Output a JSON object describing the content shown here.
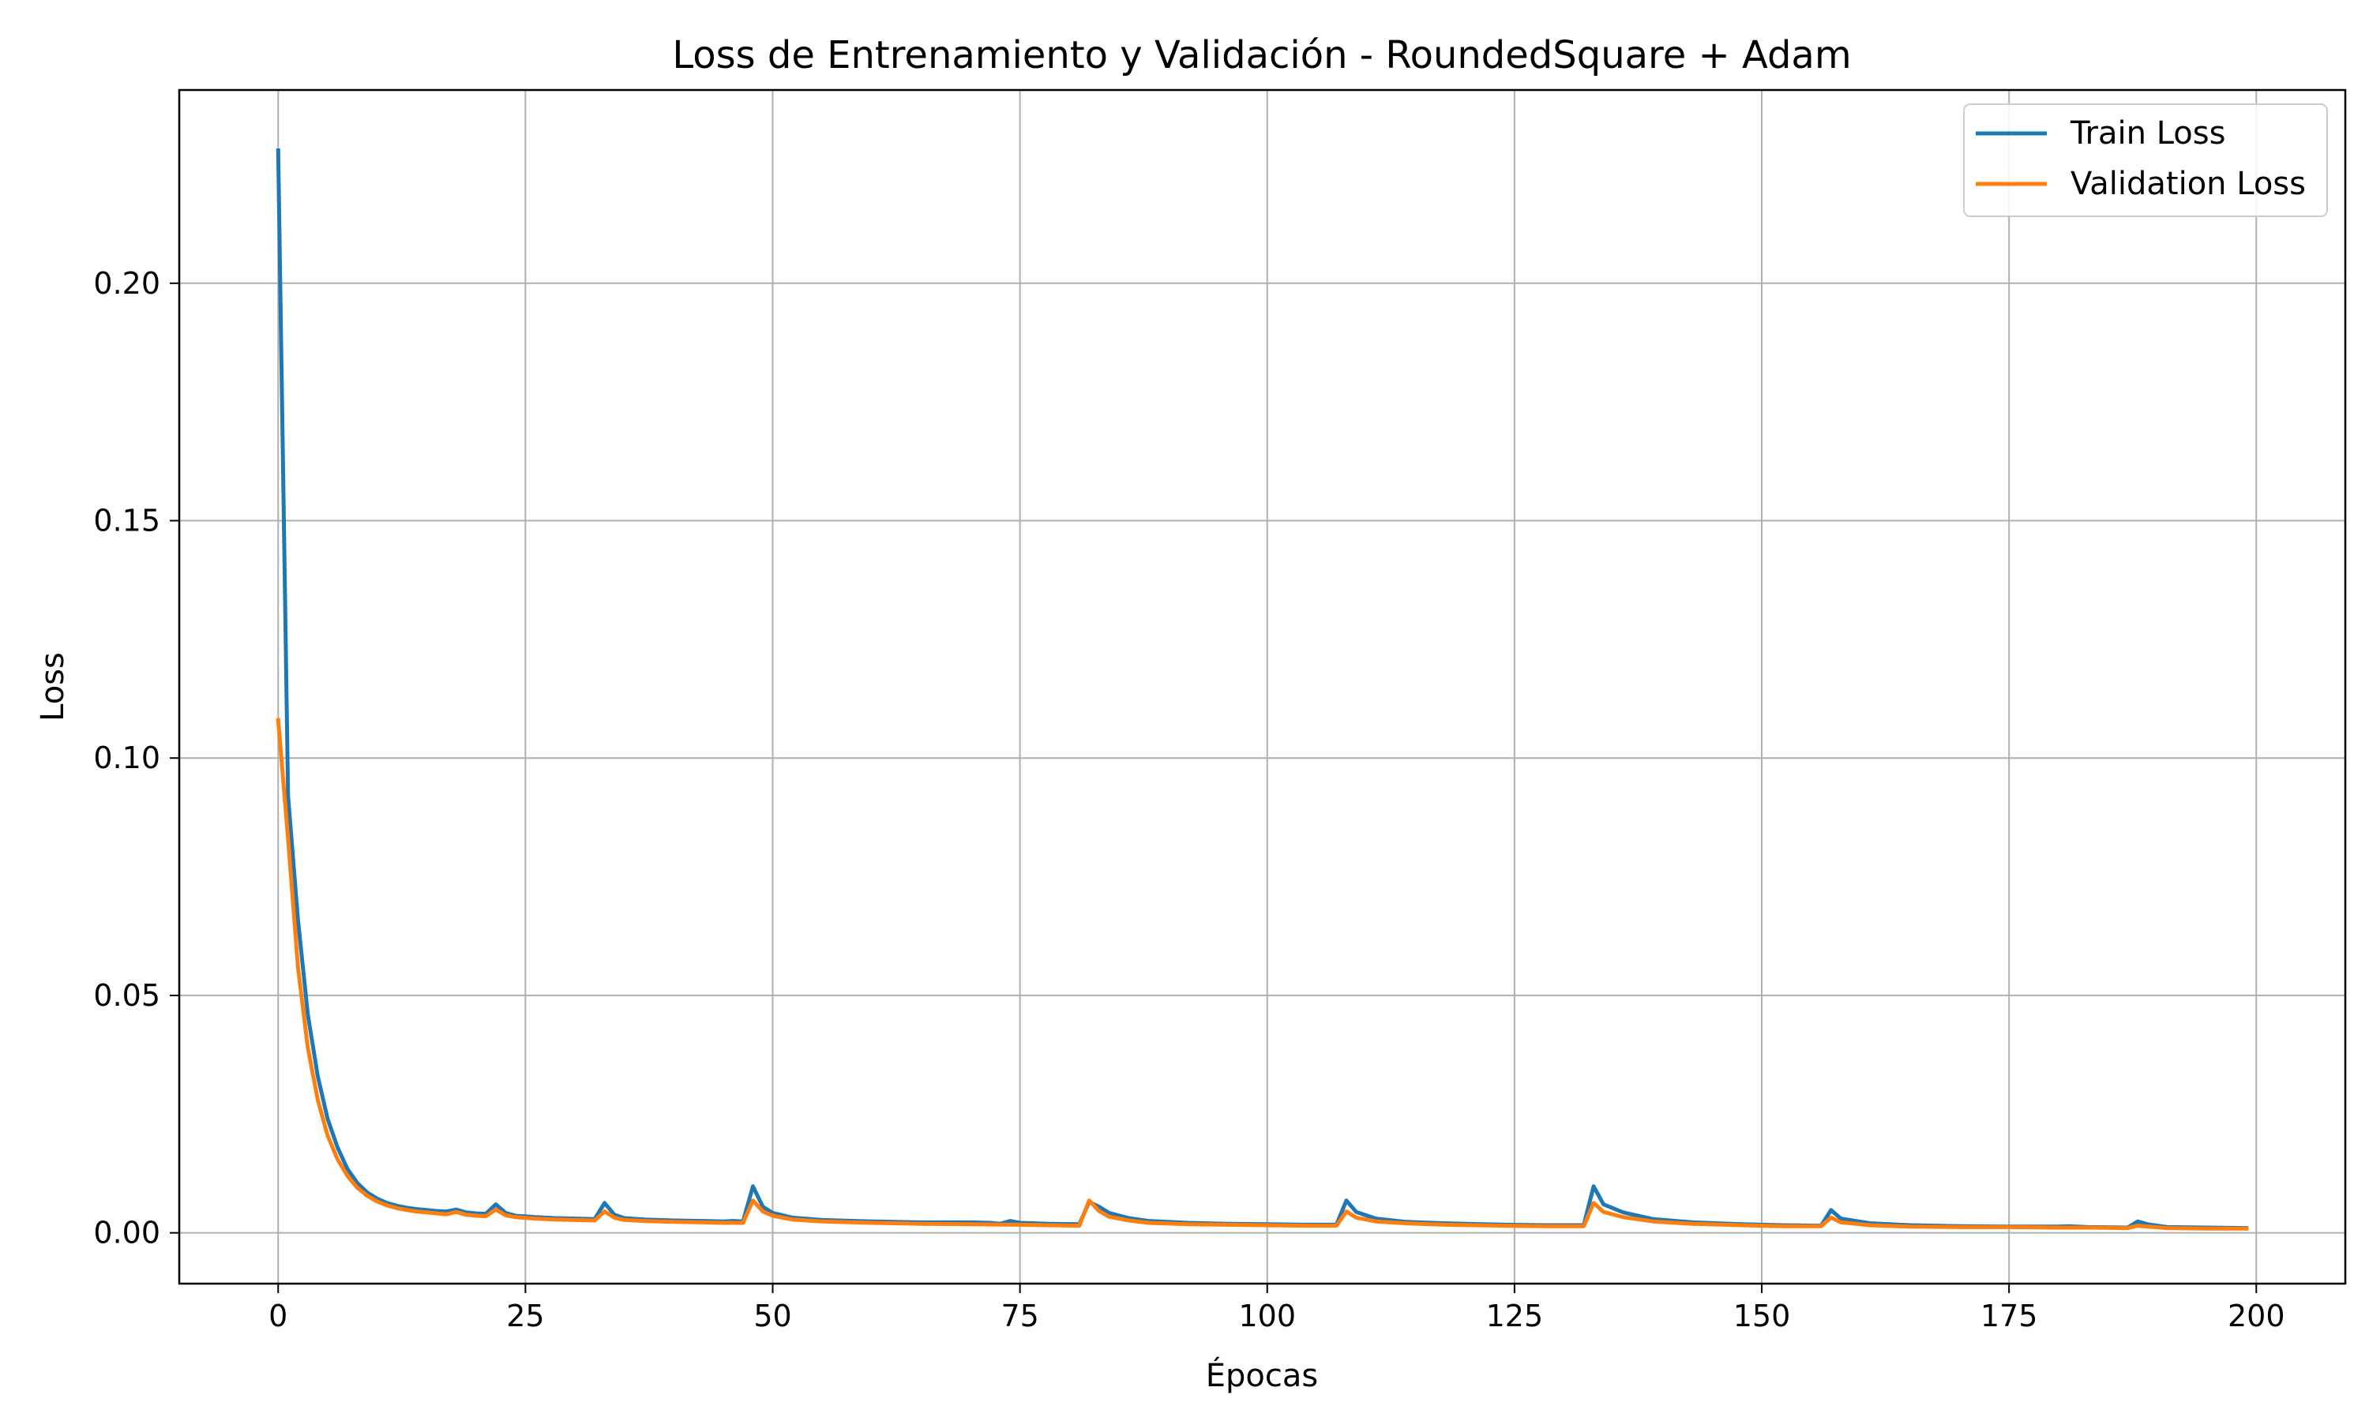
{
  "chart_data": {
    "type": "line",
    "title": "Loss de Entrenamiento y Validación - RoundedSquare + Adam",
    "xlabel": "Épocas",
    "ylabel": "Loss",
    "xlim": [
      -10,
      209
    ],
    "ylim": [
      -0.0107,
      0.2407
    ],
    "grid": true,
    "legend_position": "top-right",
    "x_ticks": [
      0,
      25,
      50,
      75,
      100,
      125,
      150,
      175,
      200
    ],
    "x_tick_labels": [
      "0",
      "25",
      "50",
      "75",
      "100",
      "125",
      "150",
      "175",
      "200"
    ],
    "y_ticks": [
      0.0,
      0.05,
      0.1,
      0.15,
      0.2
    ],
    "y_tick_labels": [
      "0.00",
      "0.05",
      "0.10",
      "0.15",
      "0.20"
    ],
    "series": [
      {
        "name": "Train Loss",
        "color": "#1f77b4",
        "points": [
          [
            0,
            0.228
          ],
          [
            1,
            0.092
          ],
          [
            2,
            0.066
          ],
          [
            3,
            0.046
          ],
          [
            4,
            0.033
          ],
          [
            5,
            0.024
          ],
          [
            6,
            0.018
          ],
          [
            7,
            0.0135
          ],
          [
            8,
            0.0105
          ],
          [
            9,
            0.0085
          ],
          [
            10,
            0.0072
          ],
          [
            11,
            0.0063
          ],
          [
            12,
            0.0057
          ],
          [
            13,
            0.0053
          ],
          [
            14,
            0.005
          ],
          [
            15,
            0.0048
          ],
          [
            16,
            0.0046
          ],
          [
            17,
            0.0045
          ],
          [
            18,
            0.0049
          ],
          [
            19,
            0.0043
          ],
          [
            20,
            0.0041
          ],
          [
            21,
            0.004
          ],
          [
            22,
            0.006
          ],
          [
            23,
            0.0042
          ],
          [
            24,
            0.0036
          ],
          [
            26,
            0.0033
          ],
          [
            28,
            0.0031
          ],
          [
            30,
            0.003
          ],
          [
            32,
            0.0029
          ],
          [
            33,
            0.0063
          ],
          [
            34,
            0.0038
          ],
          [
            35,
            0.0031
          ],
          [
            37,
            0.0028
          ],
          [
            40,
            0.0026
          ],
          [
            43,
            0.0025
          ],
          [
            45,
            0.0024
          ],
          [
            46,
            0.0025
          ],
          [
            47,
            0.0024
          ],
          [
            48,
            0.0098
          ],
          [
            49,
            0.0055
          ],
          [
            50,
            0.0042
          ],
          [
            52,
            0.0032
          ],
          [
            55,
            0.0027
          ],
          [
            60,
            0.0024
          ],
          [
            65,
            0.0022
          ],
          [
            70,
            0.0022
          ],
          [
            72,
            0.0021
          ],
          [
            73,
            0.0019
          ],
          [
            74,
            0.0025
          ],
          [
            75,
            0.0021
          ],
          [
            78,
            0.0019
          ],
          [
            81,
            0.0018
          ],
          [
            82,
            0.0065
          ],
          [
            83,
            0.0055
          ],
          [
            84,
            0.0042
          ],
          [
            86,
            0.0031
          ],
          [
            88,
            0.0025
          ],
          [
            92,
            0.0021
          ],
          [
            96,
            0.0019
          ],
          [
            100,
            0.0018
          ],
          [
            104,
            0.0017
          ],
          [
            107,
            0.0017
          ],
          [
            108,
            0.0068
          ],
          [
            109,
            0.0044
          ],
          [
            111,
            0.003
          ],
          [
            114,
            0.0023
          ],
          [
            118,
            0.002
          ],
          [
            124,
            0.0017
          ],
          [
            128,
            0.0016
          ],
          [
            132,
            0.0016
          ],
          [
            133,
            0.0098
          ],
          [
            134,
            0.006
          ],
          [
            136,
            0.0043
          ],
          [
            139,
            0.0029
          ],
          [
            143,
            0.0022
          ],
          [
            148,
            0.0018
          ],
          [
            152,
            0.0016
          ],
          [
            156,
            0.0015
          ],
          [
            157,
            0.0048
          ],
          [
            158,
            0.003
          ],
          [
            161,
            0.002
          ],
          [
            165,
            0.0016
          ],
          [
            170,
            0.0014
          ],
          [
            175,
            0.0013
          ],
          [
            180,
            0.0013
          ],
          [
            181,
            0.0014
          ],
          [
            183,
            0.0012
          ],
          [
            187,
            0.0011
          ],
          [
            188,
            0.0024
          ],
          [
            189,
            0.0018
          ],
          [
            191,
            0.0012
          ],
          [
            195,
            0.0011
          ],
          [
            199,
            0.001
          ]
        ]
      },
      {
        "name": "Validation Loss",
        "color": "#ff7f0e",
        "points": [
          [
            0,
            0.108
          ],
          [
            1,
            0.083
          ],
          [
            2,
            0.056
          ],
          [
            3,
            0.039
          ],
          [
            4,
            0.028
          ],
          [
            5,
            0.0205
          ],
          [
            6,
            0.0155
          ],
          [
            7,
            0.012
          ],
          [
            8,
            0.0095
          ],
          [
            9,
            0.0078
          ],
          [
            10,
            0.0066
          ],
          [
            11,
            0.0058
          ],
          [
            12,
            0.0052
          ],
          [
            13,
            0.0048
          ],
          [
            14,
            0.0045
          ],
          [
            15,
            0.0043
          ],
          [
            16,
            0.0041
          ],
          [
            17,
            0.0039
          ],
          [
            18,
            0.0044
          ],
          [
            19,
            0.0038
          ],
          [
            20,
            0.0036
          ],
          [
            21,
            0.0035
          ],
          [
            22,
            0.0049
          ],
          [
            23,
            0.0037
          ],
          [
            24,
            0.0033
          ],
          [
            26,
            0.003
          ],
          [
            28,
            0.0028
          ],
          [
            30,
            0.0027
          ],
          [
            32,
            0.0026
          ],
          [
            33,
            0.0045
          ],
          [
            34,
            0.0032
          ],
          [
            35,
            0.0027
          ],
          [
            37,
            0.0025
          ],
          [
            40,
            0.0023
          ],
          [
            43,
            0.0022
          ],
          [
            45,
            0.0021
          ],
          [
            47,
            0.0021
          ],
          [
            48,
            0.0068
          ],
          [
            49,
            0.0045
          ],
          [
            50,
            0.0036
          ],
          [
            52,
            0.0028
          ],
          [
            55,
            0.0024
          ],
          [
            60,
            0.0021
          ],
          [
            65,
            0.0019
          ],
          [
            70,
            0.0018
          ],
          [
            75,
            0.0017
          ],
          [
            78,
            0.0016
          ],
          [
            81,
            0.0015
          ],
          [
            82,
            0.0068
          ],
          [
            83,
            0.0046
          ],
          [
            84,
            0.0034
          ],
          [
            86,
            0.0026
          ],
          [
            88,
            0.0021
          ],
          [
            92,
            0.0018
          ],
          [
            96,
            0.0017
          ],
          [
            100,
            0.0016
          ],
          [
            104,
            0.0015
          ],
          [
            107,
            0.0015
          ],
          [
            108,
            0.0045
          ],
          [
            109,
            0.0032
          ],
          [
            111,
            0.0024
          ],
          [
            114,
            0.002
          ],
          [
            118,
            0.0017
          ],
          [
            124,
            0.0015
          ],
          [
            128,
            0.0014
          ],
          [
            132,
            0.0014
          ],
          [
            133,
            0.0063
          ],
          [
            134,
            0.0044
          ],
          [
            136,
            0.0033
          ],
          [
            139,
            0.0024
          ],
          [
            143,
            0.0019
          ],
          [
            148,
            0.0016
          ],
          [
            152,
            0.0014
          ],
          [
            156,
            0.0014
          ],
          [
            157,
            0.0032
          ],
          [
            158,
            0.0022
          ],
          [
            161,
            0.0016
          ],
          [
            165,
            0.0013
          ],
          [
            170,
            0.0012
          ],
          [
            175,
            0.0012
          ],
          [
            180,
            0.0011
          ],
          [
            183,
            0.0011
          ],
          [
            187,
            0.001
          ],
          [
            188,
            0.0015
          ],
          [
            189,
            0.0013
          ],
          [
            191,
            0.001
          ],
          [
            195,
            0.0009
          ],
          [
            199,
            0.0009
          ]
        ]
      }
    ]
  }
}
